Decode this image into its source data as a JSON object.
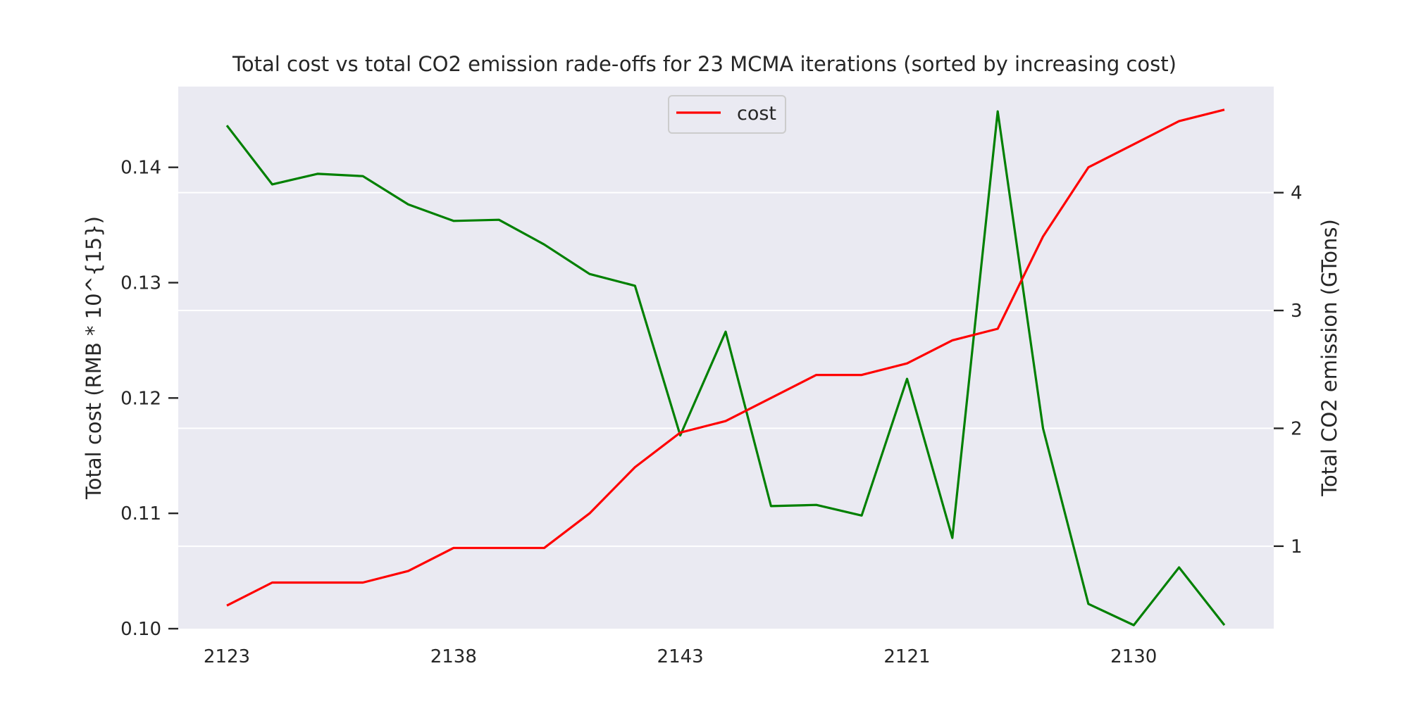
{
  "chart_data": {
    "type": "line",
    "title": "Total cost vs total CO2 emission rade-offs for 23 MCMA iterations (sorted by increasing cost)",
    "x_categories": [
      "2123",
      "",
      "",
      "",
      "",
      "2138",
      "",
      "",
      "",
      "",
      "2143",
      "",
      "",
      "",
      "",
      "2121",
      "",
      "",
      "",
      "",
      "2130",
      "",
      ""
    ],
    "x_tick_labels": [
      "2123",
      "2138",
      "2143",
      "2121",
      "2130"
    ],
    "left_axis": {
      "label": "Total cost  (RMB * 10^{15})",
      "ylim": [
        0.1,
        0.147
      ],
      "ticks": [
        0.1,
        0.11,
        0.12,
        0.13,
        0.14
      ],
      "tick_labels": [
        "0.10",
        "0.11",
        "0.12",
        "0.13",
        "0.14"
      ]
    },
    "right_axis": {
      "label": "Total CO2 emission (GTons)",
      "ylim": [
        0.3,
        4.9
      ],
      "ticks": [
        1,
        2,
        3,
        4
      ],
      "tick_labels": [
        "1",
        "2",
        "3",
        "4"
      ]
    },
    "series": [
      {
        "name": "cost",
        "axis": "left",
        "color": "#ff0000",
        "values": [
          0.102,
          0.104,
          0.104,
          0.104,
          0.105,
          0.107,
          0.107,
          0.107,
          0.11,
          0.114,
          0.117,
          0.118,
          0.12,
          0.122,
          0.122,
          0.123,
          0.125,
          0.126,
          0.134,
          0.14,
          0.142,
          0.144,
          0.145
        ]
      },
      {
        "axis": "right",
        "color": "#008000",
        "values": [
          4.57,
          4.07,
          4.16,
          4.14,
          3.9,
          3.76,
          3.77,
          3.56,
          3.31,
          3.21,
          1.94,
          2.82,
          1.34,
          1.35,
          1.26,
          2.42,
          1.07,
          4.69,
          2.0,
          0.51,
          0.33,
          0.82,
          0.33
        ]
      }
    ],
    "grid": "right-axis horizontal lines",
    "legend_position": "upper center",
    "background_color": "#eaeaf2"
  }
}
